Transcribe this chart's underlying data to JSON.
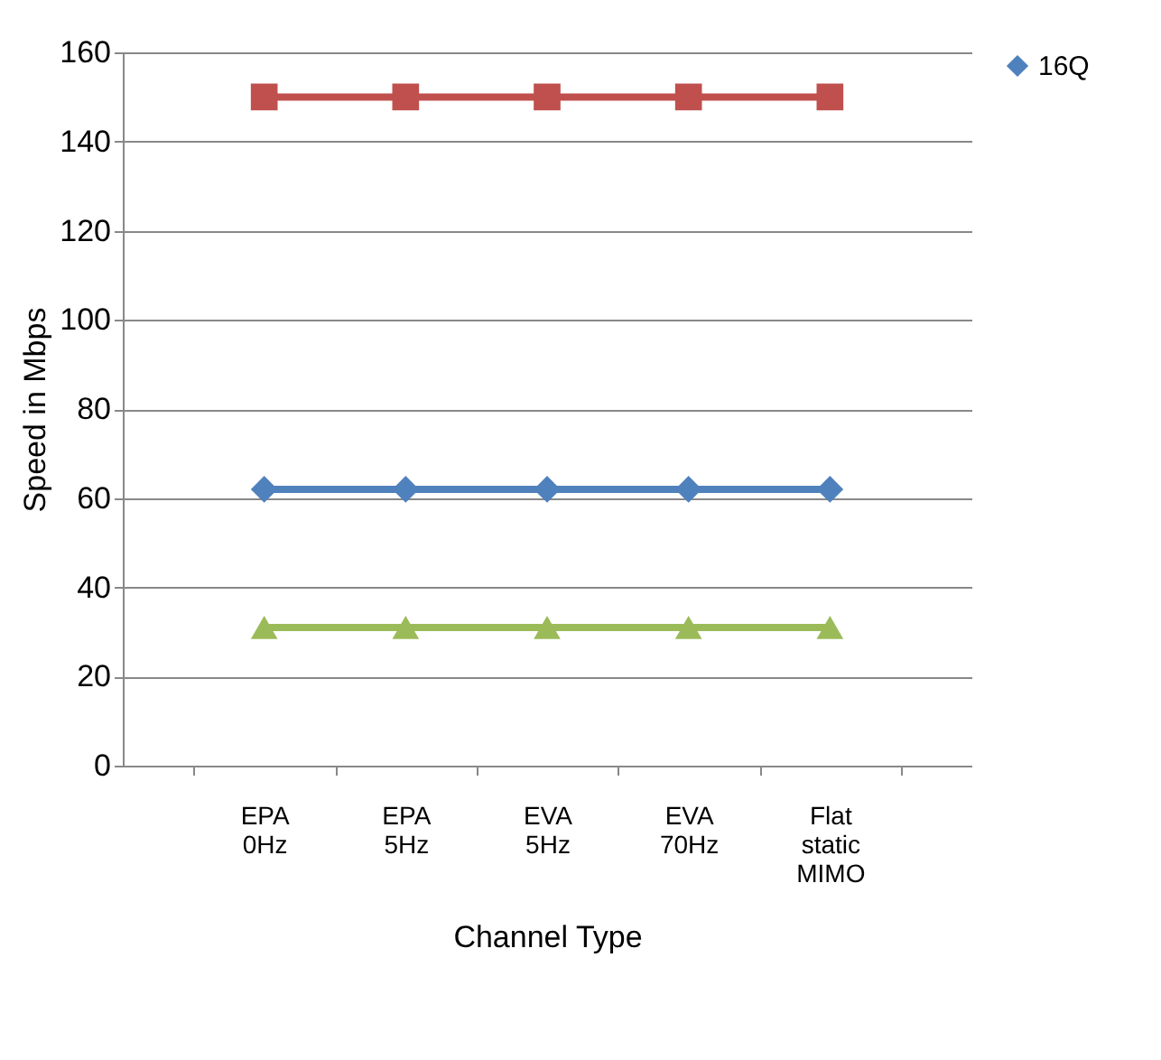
{
  "chart_data": {
    "type": "line",
    "xlabel": "Channel Type",
    "ylabel": "Speed in Mbps",
    "categories": [
      "EPA 0Hz",
      "EPA 5Hz",
      "EVA 5Hz",
      "EVA 70Hz",
      "Flat static MIMO"
    ],
    "series": [
      {
        "color": "#c0504d",
        "marker": "square",
        "values": [
          150,
          150,
          150,
          150,
          150
        ]
      },
      {
        "name": "16Q",
        "color": "#4f81bd",
        "marker": "diamond",
        "values": [
          62,
          62,
          62,
          62,
          62
        ]
      },
      {
        "color": "#9bbb59",
        "marker": "triangle",
        "values": [
          31,
          31,
          31,
          31,
          31
        ]
      }
    ],
    "ylim": [
      0,
      160
    ],
    "yticks": [
      0,
      20,
      40,
      60,
      80,
      100,
      120,
      140,
      160
    ],
    "grid": "y",
    "legend": "right",
    "line_style": "solid"
  }
}
